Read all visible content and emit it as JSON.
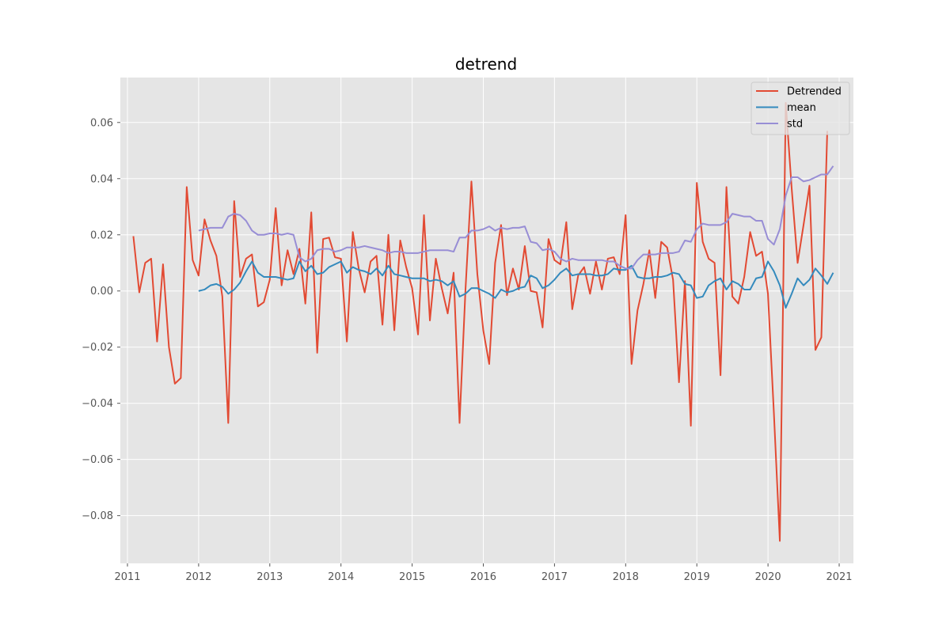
{
  "chart_data": {
    "type": "line",
    "title": "detrend",
    "xlabel": "",
    "ylabel": "",
    "xlim": [
      2010.9,
      2021.2
    ],
    "ylim": [
      -0.097,
      0.076
    ],
    "grid": true,
    "legend_position": "top-right",
    "x_ticks": [
      2011,
      2012,
      2013,
      2014,
      2015,
      2016,
      2017,
      2018,
      2019,
      2020,
      2021
    ],
    "x_tick_labels": [
      "2011",
      "2012",
      "2013",
      "2014",
      "2015",
      "2016",
      "2017",
      "2018",
      "2019",
      "2020",
      "2021"
    ],
    "y_ticks": [
      -0.08,
      -0.06,
      -0.04,
      -0.02,
      0.0,
      0.02,
      0.04,
      0.06
    ],
    "y_tick_labels": [
      "−0.08",
      "−0.06",
      "−0.04",
      "−0.02",
      "0.00",
      "0.02",
      "0.04",
      "0.06"
    ],
    "x_start": 2011.083,
    "x_step": 0.08333,
    "series": [
      {
        "name": "Detrended",
        "color": "#e24a33",
        "values": [
          0.0195,
          -0.0005,
          0.01,
          0.0115,
          -0.018,
          0.0095,
          -0.02,
          -0.033,
          -0.031,
          0.037,
          0.011,
          0.0055,
          0.0255,
          0.018,
          0.0125,
          -0.002,
          -0.047,
          0.032,
          0.005,
          0.0115,
          0.013,
          -0.0055,
          -0.004,
          0.004,
          0.0295,
          0.002,
          0.0145,
          0.006,
          0.015,
          -0.0045,
          0.028,
          -0.022,
          0.0185,
          0.019,
          0.012,
          0.0115,
          -0.018,
          0.021,
          0.008,
          -0.0005,
          0.0105,
          0.0125,
          -0.012,
          0.02,
          -0.014,
          0.018,
          0.0085,
          0.001,
          -0.0155,
          0.027,
          -0.0105,
          0.0115,
          0.001,
          -0.008,
          0.0065,
          -0.047,
          0.0005,
          0.039,
          0.006,
          -0.014,
          -0.026,
          0.01,
          0.0235,
          -0.0015,
          0.008,
          0.0005,
          0.016,
          0.0,
          -0.0005,
          -0.013,
          0.0185,
          0.011,
          0.0095,
          0.0245,
          -0.0065,
          0.0055,
          0.0085,
          -0.001,
          0.0105,
          0.0005,
          0.0115,
          0.012,
          0.006,
          0.027,
          -0.026,
          -0.007,
          0.0025,
          0.0145,
          -0.0025,
          0.0175,
          0.0155,
          0.004,
          -0.0325,
          0.0035,
          -0.048,
          0.0385,
          0.0175,
          0.0115,
          0.01,
          -0.03,
          0.037,
          -0.002,
          -0.0045,
          0.005,
          0.021,
          0.0125,
          0.014,
          -0.001,
          -0.0435,
          -0.089,
          0.067,
          0.0365,
          0.01,
          0.0235,
          0.0375,
          -0.021,
          -0.0165,
          0.057
        ]
      },
      {
        "name": "mean",
        "color": "#348abd",
        "values": [
          null,
          null,
          null,
          null,
          null,
          null,
          null,
          null,
          null,
          null,
          null,
          0.0,
          0.0005,
          0.002,
          0.0025,
          0.0015,
          -0.001,
          0.0005,
          0.003,
          0.007,
          0.0105,
          0.0065,
          0.005,
          0.005,
          0.005,
          0.0045,
          0.004,
          0.0045,
          0.0105,
          0.007,
          0.009,
          0.006,
          0.0065,
          0.0085,
          0.0095,
          0.0105,
          0.0065,
          0.0085,
          0.0075,
          0.007,
          0.006,
          0.008,
          0.0055,
          0.009,
          0.006,
          0.0055,
          0.005,
          0.0045,
          0.0045,
          0.0045,
          0.0035,
          0.004,
          0.0035,
          0.002,
          0.0035,
          -0.002,
          -0.001,
          0.001,
          0.001,
          0.0,
          -0.001,
          -0.0025,
          0.0005,
          -0.0005,
          0.0,
          0.001,
          0.0015,
          0.0055,
          0.0045,
          0.001,
          0.002,
          0.004,
          0.0065,
          0.008,
          0.0055,
          0.006,
          0.006,
          0.006,
          0.0055,
          0.0055,
          0.006,
          0.008,
          0.0075,
          0.0075,
          0.009,
          0.005,
          0.0045,
          0.0045,
          0.005,
          0.005,
          0.0055,
          0.0065,
          0.006,
          0.0025,
          0.002,
          -0.0025,
          -0.002,
          0.002,
          0.0035,
          0.0045,
          0.0005,
          0.0035,
          0.0025,
          0.0005,
          0.0005,
          0.0045,
          0.005,
          0.0105,
          0.007,
          0.002,
          -0.006,
          -0.001,
          0.0045,
          0.002,
          0.004,
          0.008,
          0.0055,
          0.0025,
          0.0065
        ]
      },
      {
        "name": "std",
        "color": "#988ed5",
        "values": [
          null,
          null,
          null,
          null,
          null,
          null,
          null,
          null,
          null,
          null,
          null,
          0.0215,
          0.022,
          0.0225,
          0.0225,
          0.0225,
          0.0265,
          0.0275,
          0.027,
          0.025,
          0.0215,
          0.02,
          0.02,
          0.0205,
          0.0205,
          0.02,
          0.0205,
          0.02,
          0.012,
          0.0105,
          0.0115,
          0.0145,
          0.015,
          0.015,
          0.014,
          0.0145,
          0.0155,
          0.0155,
          0.0155,
          0.016,
          0.0155,
          0.015,
          0.0145,
          0.0135,
          0.014,
          0.014,
          0.0135,
          0.0135,
          0.0135,
          0.014,
          0.0145,
          0.0145,
          0.0145,
          0.0145,
          0.014,
          0.019,
          0.019,
          0.0215,
          0.0215,
          0.022,
          0.023,
          0.0215,
          0.0225,
          0.022,
          0.0225,
          0.0225,
          0.023,
          0.0175,
          0.017,
          0.0145,
          0.015,
          0.014,
          0.0115,
          0.0105,
          0.0115,
          0.011,
          0.011,
          0.011,
          0.011,
          0.011,
          0.0105,
          0.0105,
          0.009,
          0.008,
          0.008,
          0.011,
          0.013,
          0.013,
          0.013,
          0.0135,
          0.0135,
          0.0135,
          0.014,
          0.018,
          0.0175,
          0.022,
          0.024,
          0.0235,
          0.0235,
          0.0235,
          0.0245,
          0.0275,
          0.027,
          0.0265,
          0.0265,
          0.025,
          0.025,
          0.0185,
          0.0165,
          0.022,
          0.034,
          0.0405,
          0.0405,
          0.039,
          0.0395,
          0.0405,
          0.0415,
          0.0415,
          0.0445
        ]
      }
    ]
  }
}
